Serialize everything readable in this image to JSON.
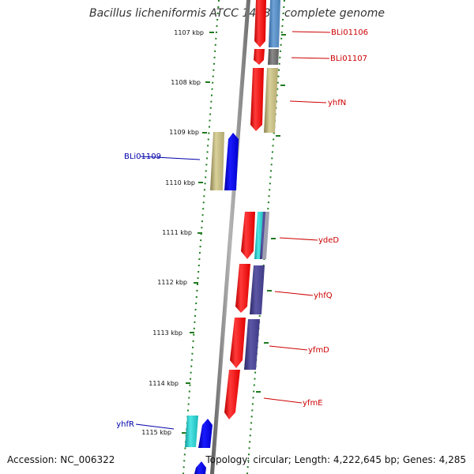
{
  "title": "Bacillus licheniformis ATCC 14580, complete genome",
  "footer": {
    "accession": "Accession: NC_006322",
    "summary": "Topology: circular; Length: 4,222,645 bp; Genes: 4,285"
  },
  "ruler": {
    "unit": "kbp",
    "ticks": [
      "1107 kbp",
      "1108 kbp",
      "1109 kbp",
      "1110 kbp",
      "1111 kbp",
      "1112 kbp",
      "1113 kbp",
      "1114 kbp",
      "1115 kbp"
    ]
  },
  "colors": {
    "backbone": "#7a7a7a",
    "dots": "#1f7a1f",
    "forward_label": "#cc0000",
    "reverse_label": "#0000aa",
    "red": "#ff0000",
    "blue": "#0000ee",
    "cyan": "#22cccc",
    "olive": "#c8bf80",
    "steel": "#4f86c0",
    "slate": "#474290",
    "gray": "#6f6f6f"
  },
  "gene_labels": [
    {
      "text": "BLi01106",
      "side": "right"
    },
    {
      "text": "BLi01107",
      "side": "right"
    },
    {
      "text": "yhfN",
      "side": "right"
    },
    {
      "text": "BLi01109",
      "side": "left"
    },
    {
      "text": "ydeD",
      "side": "right"
    },
    {
      "text": "yhfQ",
      "side": "right"
    },
    {
      "text": "yfmD",
      "side": "right"
    },
    {
      "text": "yfmE",
      "side": "right"
    },
    {
      "text": "yhfR",
      "side": "left"
    }
  ]
}
